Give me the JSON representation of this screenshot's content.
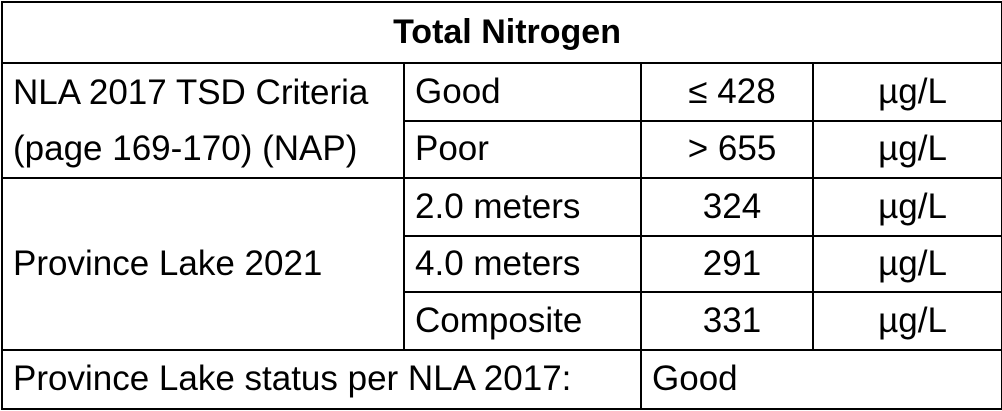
{
  "title": "Total Nitrogen",
  "criteria": {
    "label_line1": "NLA 2017 TSD Criteria",
    "label_line2": "(page 169-170) (NAP)",
    "rows": [
      {
        "class": "Good",
        "value": "≤ 428",
        "unit": "µg/L"
      },
      {
        "class": "Poor",
        "value": "> 655",
        "unit": "µg/L"
      }
    ]
  },
  "measurements": {
    "label": "Province Lake 2021",
    "rows": [
      {
        "depth": "2.0 meters",
        "value": "324",
        "unit": "µg/L"
      },
      {
        "depth": "4.0 meters",
        "value": "291",
        "unit": "µg/L"
      },
      {
        "depth": "Composite",
        "value": "331",
        "unit": "µg/L"
      }
    ]
  },
  "status": {
    "label": "Province Lake status per NLA 2017:",
    "value": "Good"
  }
}
